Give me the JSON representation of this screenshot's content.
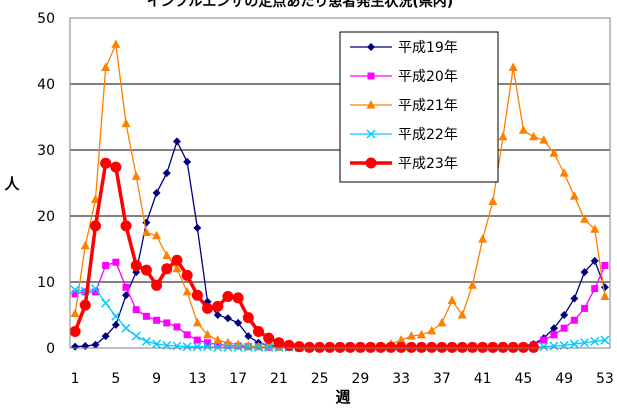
{
  "chart_data": {
    "type": "line",
    "title": "インフルエンザの定点あたり患者発生状況(県内)",
    "xlabel": "週",
    "ylabel": "人",
    "xlim": [
      1,
      53
    ],
    "ylim": [
      0,
      50
    ],
    "xticks": [
      1,
      5,
      9,
      13,
      17,
      21,
      25,
      29,
      33,
      37,
      41,
      45,
      49,
      53
    ],
    "yticks": [
      0,
      10,
      20,
      30,
      40,
      50
    ],
    "grid": true,
    "legend_position": "top-right",
    "series": [
      {
        "name": "平成19年",
        "color": "#000080",
        "marker": "diamond",
        "points": [
          [
            1,
            0.2
          ],
          [
            2,
            0.3
          ],
          [
            3,
            0.5
          ],
          [
            4,
            1.8
          ],
          [
            5,
            3.5
          ],
          [
            6,
            8.0
          ],
          [
            7,
            11.5
          ],
          [
            8,
            19.0
          ],
          [
            9,
            23.5
          ],
          [
            10,
            26.5
          ],
          [
            11,
            31.3
          ],
          [
            12,
            28.2
          ],
          [
            13,
            18.2
          ],
          [
            14,
            7.0
          ],
          [
            15,
            5.0
          ],
          [
            16,
            4.5
          ],
          [
            17,
            3.8
          ],
          [
            18,
            1.8
          ],
          [
            19,
            0.8
          ],
          [
            20,
            0.4
          ],
          [
            21,
            0.2
          ],
          [
            22,
            0.1
          ],
          [
            23,
            0.1
          ],
          [
            24,
            0.1
          ],
          [
            25,
            0.1
          ],
          [
            26,
            0.1
          ],
          [
            27,
            0.1
          ],
          [
            28,
            0.1
          ],
          [
            29,
            0.1
          ],
          [
            30,
            0.1
          ],
          [
            31,
            0.1
          ],
          [
            32,
            0.1
          ],
          [
            33,
            0.1
          ],
          [
            34,
            0.1
          ],
          [
            35,
            0.1
          ],
          [
            36,
            0.1
          ],
          [
            37,
            0.1
          ],
          [
            38,
            0.1
          ],
          [
            39,
            0.1
          ],
          [
            40,
            0.1
          ],
          [
            41,
            0.1
          ],
          [
            42,
            0.1
          ],
          [
            43,
            0.1
          ],
          [
            44,
            0.2
          ],
          [
            45,
            0.3
          ],
          [
            46,
            0.6
          ],
          [
            47,
            1.5
          ],
          [
            48,
            3.0
          ],
          [
            49,
            5.0
          ],
          [
            50,
            7.5
          ],
          [
            51,
            11.5
          ],
          [
            52,
            13.2
          ],
          [
            53,
            9.2
          ]
        ]
      },
      {
        "name": "平成20年",
        "color": "#ff00ff",
        "marker": "square",
        "points": [
          [
            1,
            8.2
          ],
          [
            2,
            8.5
          ],
          [
            3,
            8.5
          ],
          [
            4,
            12.5
          ],
          [
            5,
            13.0
          ],
          [
            6,
            9.2
          ],
          [
            7,
            5.8
          ],
          [
            8,
            4.8
          ],
          [
            9,
            4.2
          ],
          [
            10,
            3.8
          ],
          [
            11,
            3.2
          ],
          [
            12,
            2.0
          ],
          [
            13,
            1.2
          ],
          [
            14,
            0.8
          ],
          [
            15,
            0.5
          ],
          [
            16,
            0.4
          ],
          [
            17,
            0.3
          ],
          [
            18,
            0.2
          ],
          [
            19,
            0.2
          ],
          [
            20,
            0.1
          ],
          [
            21,
            0.1
          ],
          [
            22,
            0.1
          ],
          [
            23,
            0.1
          ],
          [
            24,
            0.1
          ],
          [
            25,
            0.1
          ],
          [
            26,
            0.1
          ],
          [
            27,
            0.1
          ],
          [
            28,
            0.1
          ],
          [
            29,
            0.1
          ],
          [
            30,
            0.1
          ],
          [
            31,
            0.1
          ],
          [
            32,
            0.1
          ],
          [
            33,
            0.1
          ],
          [
            34,
            0.1
          ],
          [
            35,
            0.1
          ],
          [
            36,
            0.1
          ],
          [
            37,
            0.1
          ],
          [
            38,
            0.1
          ],
          [
            39,
            0.1
          ],
          [
            40,
            0.1
          ],
          [
            41,
            0.1
          ],
          [
            42,
            0.1
          ],
          [
            43,
            0.1
          ],
          [
            44,
            0.1
          ],
          [
            45,
            0.2
          ],
          [
            46,
            0.5
          ],
          [
            47,
            1.2
          ],
          [
            48,
            2.0
          ],
          [
            49,
            3.0
          ],
          [
            50,
            4.2
          ],
          [
            51,
            6.0
          ],
          [
            52,
            9.0
          ],
          [
            53,
            12.5
          ]
        ]
      },
      {
        "name": "平成21年",
        "color": "#ff8000",
        "marker": "triangle",
        "points": [
          [
            1,
            5.2
          ],
          [
            2,
            15.5
          ],
          [
            3,
            22.5
          ],
          [
            4,
            42.5
          ],
          [
            5,
            46.0
          ],
          [
            6,
            34.0
          ],
          [
            7,
            26.0
          ],
          [
            8,
            17.5
          ],
          [
            9,
            17.0
          ],
          [
            10,
            14.0
          ],
          [
            11,
            12.0
          ],
          [
            12,
            8.5
          ],
          [
            13,
            3.8
          ],
          [
            14,
            2.0
          ],
          [
            15,
            1.2
          ],
          [
            16,
            0.8
          ],
          [
            17,
            0.5
          ],
          [
            18,
            0.3
          ],
          [
            19,
            0.2
          ],
          [
            20,
            0.2
          ],
          [
            21,
            0.1
          ],
          [
            22,
            0.1
          ],
          [
            23,
            0.1
          ],
          [
            24,
            0.1
          ],
          [
            25,
            0.1
          ],
          [
            26,
            0.1
          ],
          [
            27,
            0.1
          ],
          [
            28,
            0.1
          ],
          [
            29,
            0.2
          ],
          [
            30,
            0.2
          ],
          [
            31,
            0.3
          ],
          [
            32,
            0.6
          ],
          [
            33,
            1.2
          ],
          [
            34,
            1.8
          ],
          [
            35,
            2.0
          ],
          [
            36,
            2.6
          ],
          [
            37,
            3.8
          ],
          [
            38,
            7.2
          ],
          [
            39,
            5.0
          ],
          [
            40,
            9.5
          ],
          [
            41,
            16.5
          ],
          [
            42,
            22.2
          ],
          [
            43,
            32.0
          ],
          [
            44,
            42.5
          ],
          [
            45,
            33.0
          ],
          [
            46,
            32.0
          ],
          [
            47,
            31.5
          ],
          [
            48,
            29.5
          ],
          [
            49,
            26.5
          ],
          [
            50,
            23.0
          ],
          [
            51,
            19.5
          ],
          [
            52,
            18.0
          ],
          [
            53,
            7.8
          ]
        ]
      },
      {
        "name": "平成22年",
        "color": "#00ccff",
        "marker": "x",
        "points": [
          [
            1,
            8.8
          ],
          [
            2,
            8.6
          ],
          [
            3,
            9.0
          ],
          [
            4,
            6.8
          ],
          [
            5,
            4.8
          ],
          [
            6,
            3.0
          ],
          [
            7,
            1.8
          ],
          [
            8,
            1.0
          ],
          [
            9,
            0.6
          ],
          [
            10,
            0.4
          ],
          [
            11,
            0.3
          ],
          [
            12,
            0.2
          ],
          [
            13,
            0.2
          ],
          [
            14,
            0.2
          ],
          [
            15,
            0.1
          ],
          [
            16,
            0.1
          ],
          [
            17,
            0.1
          ],
          [
            18,
            0.1
          ],
          [
            19,
            0.1
          ],
          [
            20,
            0.1
          ],
          [
            21,
            0.1
          ],
          [
            22,
            0.1
          ],
          [
            23,
            0.1
          ],
          [
            24,
            0.1
          ],
          [
            25,
            0.1
          ],
          [
            26,
            0.1
          ],
          [
            27,
            0.1
          ],
          [
            28,
            0.1
          ],
          [
            29,
            0.1
          ],
          [
            30,
            0.1
          ],
          [
            31,
            0.1
          ],
          [
            32,
            0.1
          ],
          [
            33,
            0.1
          ],
          [
            34,
            0.1
          ],
          [
            35,
            0.1
          ],
          [
            36,
            0.1
          ],
          [
            37,
            0.1
          ],
          [
            38,
            0.1
          ],
          [
            39,
            0.1
          ],
          [
            40,
            0.1
          ],
          [
            41,
            0.1
          ],
          [
            42,
            0.1
          ],
          [
            43,
            0.1
          ],
          [
            44,
            0.1
          ],
          [
            45,
            0.1
          ],
          [
            46,
            0.1
          ],
          [
            47,
            0.2
          ],
          [
            48,
            0.3
          ],
          [
            49,
            0.4
          ],
          [
            50,
            0.6
          ],
          [
            51,
            0.8
          ],
          [
            52,
            1.0
          ],
          [
            53,
            1.2
          ]
        ]
      },
      {
        "name": "平成23年",
        "color": "#ff0000",
        "marker": "circle",
        "bold": true,
        "points": [
          [
            1,
            2.5
          ],
          [
            2,
            6.5
          ],
          [
            3,
            18.5
          ],
          [
            4,
            28.0
          ],
          [
            5,
            27.4
          ],
          [
            6,
            18.5
          ],
          [
            7,
            12.5
          ],
          [
            8,
            11.8
          ],
          [
            9,
            9.5
          ],
          [
            10,
            12.0
          ],
          [
            11,
            13.3
          ],
          [
            12,
            11.0
          ],
          [
            13,
            8.0
          ],
          [
            14,
            6.0
          ],
          [
            15,
            6.3
          ],
          [
            16,
            7.8
          ],
          [
            17,
            7.6
          ],
          [
            18,
            4.6
          ],
          [
            19,
            2.5
          ],
          [
            20,
            1.5
          ],
          [
            21,
            0.8
          ],
          [
            22,
            0.4
          ],
          [
            23,
            0.2
          ],
          [
            24,
            0.1
          ],
          [
            25,
            0.1
          ],
          [
            26,
            0.1
          ],
          [
            27,
            0.1
          ],
          [
            28,
            0.1
          ],
          [
            29,
            0.1
          ],
          [
            30,
            0.1
          ],
          [
            31,
            0.1
          ],
          [
            32,
            0.1
          ],
          [
            33,
            0.1
          ],
          [
            34,
            0.1
          ],
          [
            35,
            0.1
          ],
          [
            36,
            0.1
          ],
          [
            37,
            0.1
          ],
          [
            38,
            0.1
          ],
          [
            39,
            0.1
          ],
          [
            40,
            0.1
          ],
          [
            41,
            0.1
          ],
          [
            42,
            0.1
          ],
          [
            43,
            0.1
          ],
          [
            44,
            0.1
          ],
          [
            45,
            0.1
          ],
          [
            46,
            0.1
          ]
        ]
      }
    ]
  }
}
